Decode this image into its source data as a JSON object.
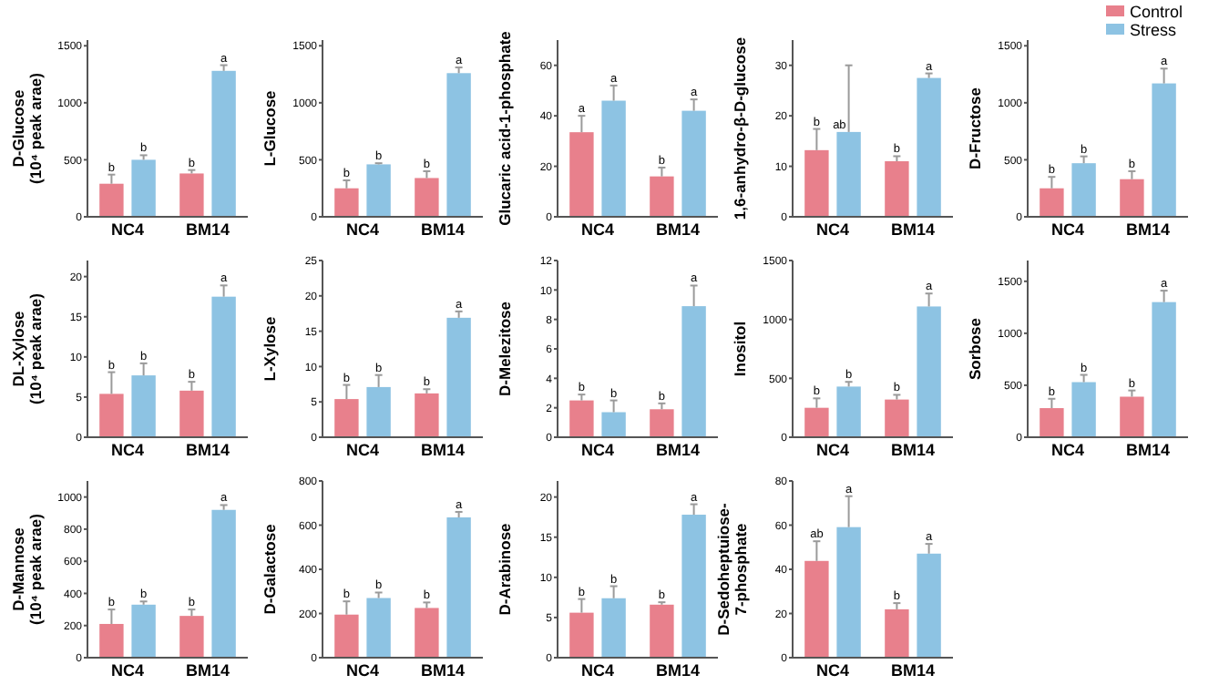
{
  "chart_data": [
    {
      "type": "bar",
      "ylabel": "D-Glucose\n(10⁴ peak arae)",
      "categories": [
        "NC4",
        "BM14"
      ],
      "ylim": [
        0,
        1550
      ],
      "yticks": [
        0,
        500,
        1000,
        1500
      ],
      "series": [
        {
          "color": "#e8808c",
          "values": [
            290,
            380
          ],
          "errors": [
            [
              290,
              370
            ],
            [
              380,
              410
            ]
          ],
          "value_labels": [
            "b",
            "b"
          ]
        },
        {
          "color": "#8dc3e3",
          "values": [
            500,
            1280
          ],
          "errors": [
            [
              500,
              540
            ],
            [
              1280,
              1330
            ]
          ],
          "value_labels": [
            "b",
            "a"
          ]
        }
      ]
    },
    {
      "type": "bar",
      "ylabel": "L-Glucose",
      "categories": [
        "NC4",
        "BM14"
      ],
      "ylim": [
        0,
        1550
      ],
      "yticks": [
        0,
        500,
        1000,
        1500
      ],
      "series": [
        {
          "color": "#e8808c",
          "values": [
            250,
            340
          ],
          "errors": [
            [
              250,
              320
            ],
            [
              340,
              400
            ]
          ],
          "value_labels": [
            "b",
            "b"
          ]
        },
        {
          "color": "#8dc3e3",
          "values": [
            460,
            1260
          ],
          "errors": [
            [
              460,
              470
            ],
            [
              1260,
              1310
            ]
          ],
          "value_labels": [
            "b",
            "a"
          ]
        }
      ]
    },
    {
      "type": "bar",
      "ylabel": "Glucaric acid-1-phosphate",
      "categories": [
        "NC4",
        "BM14"
      ],
      "ylim": [
        0,
        70
      ],
      "yticks": [
        0,
        20,
        40,
        60
      ],
      "series": [
        {
          "color": "#e8808c",
          "values": [
            33.5,
            16
          ],
          "errors": [
            [
              33.5,
              40
            ],
            [
              16,
              19.5
            ]
          ],
          "value_labels": [
            "a",
            "b"
          ]
        },
        {
          "color": "#8dc3e3",
          "values": [
            46,
            42
          ],
          "errors": [
            [
              46,
              52
            ],
            [
              42,
              46.5
            ]
          ],
          "value_labels": [
            "a",
            "a"
          ]
        }
      ]
    },
    {
      "type": "bar",
      "ylabel": "1,6-anhydro-β-D-glucose",
      "categories": [
        "NC4",
        "BM14"
      ],
      "ylim": [
        0,
        35
      ],
      "yticks": [
        0,
        10,
        20,
        30
      ],
      "series": [
        {
          "color": "#e8808c",
          "values": [
            13.2,
            11
          ],
          "errors": [
            [
              13.2,
              17.4
            ],
            [
              11,
              12
            ]
          ],
          "value_labels": [
            "b",
            "b"
          ]
        },
        {
          "color": "#8dc3e3",
          "values": [
            16.8,
            27.5
          ],
          "errors": [
            [
              16.8,
              30
            ],
            [
              27.5,
              28.4
            ]
          ],
          "value_labels": [
            "ab",
            "a"
          ]
        }
      ]
    },
    {
      "type": "bar",
      "ylabel": "D-Fructose",
      "categories": [
        "NC4",
        "BM14"
      ],
      "ylim": [
        0,
        1550
      ],
      "yticks": [
        0,
        500,
        1000,
        1500
      ],
      "legend": "top right",
      "series": [
        {
          "name": "Control",
          "color": "#e8808c",
          "values": [
            250,
            330
          ],
          "errors": [
            [
              250,
              350
            ],
            [
              330,
              400
            ]
          ],
          "value_labels": [
            "b",
            "b"
          ]
        },
        {
          "name": "Stress",
          "color": "#8dc3e3",
          "values": [
            470,
            1170
          ],
          "errors": [
            [
              470,
              530
            ],
            [
              1170,
              1300
            ]
          ],
          "value_labels": [
            "b",
            "a"
          ]
        }
      ]
    },
    {
      "type": "bar",
      "ylabel": "DL-Xylose\n(10⁴ peak arae)",
      "categories": [
        "NC4",
        "BM14"
      ],
      "ylim": [
        0,
        22
      ],
      "yticks": [
        0,
        5,
        10,
        15,
        20
      ],
      "series": [
        {
          "color": "#e8808c",
          "values": [
            5.4,
            5.8
          ],
          "errors": [
            [
              5.4,
              8.1
            ],
            [
              5.8,
              6.9
            ]
          ],
          "value_labels": [
            "b",
            "b"
          ]
        },
        {
          "color": "#8dc3e3",
          "values": [
            7.7,
            17.5
          ],
          "errors": [
            [
              7.7,
              9.2
            ],
            [
              17.5,
              18.9
            ]
          ],
          "value_labels": [
            "b",
            "a"
          ]
        }
      ]
    },
    {
      "type": "bar",
      "ylabel": "L-Xylose",
      "categories": [
        "NC4",
        "BM14"
      ],
      "ylim": [
        0,
        25
      ],
      "yticks": [
        0,
        5,
        10,
        15,
        20,
        25
      ],
      "series": [
        {
          "color": "#e8808c",
          "values": [
            5.4,
            6.2
          ],
          "errors": [
            [
              5.4,
              7.4
            ],
            [
              6.2,
              6.8
            ]
          ],
          "value_labels": [
            "b",
            "b"
          ]
        },
        {
          "color": "#8dc3e3",
          "values": [
            7.1,
            16.9
          ],
          "errors": [
            [
              7.1,
              8.8
            ],
            [
              16.9,
              17.8
            ]
          ],
          "value_labels": [
            "b",
            "a"
          ]
        }
      ]
    },
    {
      "type": "bar",
      "ylabel": "D-Melezitose",
      "categories": [
        "NC4",
        "BM14"
      ],
      "ylim": [
        0,
        12
      ],
      "yticks": [
        0,
        2,
        4,
        6,
        8,
        10,
        12
      ],
      "series": [
        {
          "color": "#e8808c",
          "values": [
            2.5,
            1.9
          ],
          "errors": [
            [
              2.5,
              2.9
            ],
            [
              1.9,
              2.3
            ]
          ],
          "value_labels": [
            "b",
            "b"
          ]
        },
        {
          "color": "#8dc3e3",
          "values": [
            1.7,
            8.9
          ],
          "errors": [
            [
              1.7,
              2.5
            ],
            [
              8.9,
              10.3
            ]
          ],
          "value_labels": [
            "b",
            "a"
          ]
        }
      ]
    },
    {
      "type": "bar",
      "ylabel": "Inositol",
      "categories": [
        "NC4",
        "BM14"
      ],
      "ylim": [
        0,
        1500
      ],
      "yticks": [
        0,
        500,
        1000,
        1500
      ],
      "series": [
        {
          "color": "#e8808c",
          "values": [
            250,
            320
          ],
          "errors": [
            [
              250,
              330
            ],
            [
              320,
              360
            ]
          ],
          "value_labels": [
            "b",
            "b"
          ]
        },
        {
          "color": "#8dc3e3",
          "values": [
            430,
            1110
          ],
          "errors": [
            [
              430,
              470
            ],
            [
              1110,
              1220
            ]
          ],
          "value_labels": [
            "b",
            "a"
          ]
        }
      ]
    },
    {
      "type": "bar",
      "ylabel": "Sorbose",
      "categories": [
        "NC4",
        "BM14"
      ],
      "ylim": [
        0,
        1700
      ],
      "yticks": [
        0,
        500,
        1000,
        1500
      ],
      "series": [
        {
          "color": "#e8808c",
          "values": [
            280,
            390
          ],
          "errors": [
            [
              280,
              370
            ],
            [
              390,
              450
            ]
          ],
          "value_labels": [
            "b",
            "b"
          ]
        },
        {
          "color": "#8dc3e3",
          "values": [
            530,
            1300
          ],
          "errors": [
            [
              530,
              600
            ],
            [
              1300,
              1410
            ]
          ],
          "value_labels": [
            "b",
            "a"
          ]
        }
      ]
    },
    {
      "type": "bar",
      "ylabel": "D-Mannose\n(10⁴ peak arae)",
      "categories": [
        "NC4",
        "BM14"
      ],
      "ylim": [
        0,
        1100
      ],
      "yticks": [
        0,
        200,
        400,
        600,
        800,
        1000
      ],
      "series": [
        {
          "color": "#e8808c",
          "values": [
            210,
            260
          ],
          "errors": [
            [
              210,
              300
            ],
            [
              260,
              300
            ]
          ],
          "value_labels": [
            "b",
            "b"
          ]
        },
        {
          "color": "#8dc3e3",
          "values": [
            330,
            920
          ],
          "errors": [
            [
              330,
              350
            ],
            [
              920,
              950
            ]
          ],
          "value_labels": [
            "b",
            "a"
          ]
        }
      ]
    },
    {
      "type": "bar",
      "ylabel": "D-Galactose",
      "categories": [
        "NC4",
        "BM14"
      ],
      "ylim": [
        0,
        800
      ],
      "yticks": [
        0,
        200,
        400,
        600,
        800
      ],
      "series": [
        {
          "color": "#e8808c",
          "values": [
            195,
            225
          ],
          "errors": [
            [
              195,
              255
            ],
            [
              225,
              250
            ]
          ],
          "value_labels": [
            "b",
            "b"
          ]
        },
        {
          "color": "#8dc3e3",
          "values": [
            270,
            635
          ],
          "errors": [
            [
              270,
              295
            ],
            [
              635,
              660
            ]
          ],
          "value_labels": [
            "b",
            "a"
          ]
        }
      ]
    },
    {
      "type": "bar",
      "ylabel": "D-Arabinose",
      "categories": [
        "NC4",
        "BM14"
      ],
      "ylim": [
        0,
        22
      ],
      "yticks": [
        0,
        5,
        10,
        15,
        20
      ],
      "series": [
        {
          "color": "#e8808c",
          "values": [
            5.6,
            6.6
          ],
          "errors": [
            [
              5.6,
              7.3
            ],
            [
              6.6,
              6.9
            ]
          ],
          "value_labels": [
            "b",
            "b"
          ]
        },
        {
          "color": "#8dc3e3",
          "values": [
            7.4,
            17.8
          ],
          "errors": [
            [
              7.4,
              8.9
            ],
            [
              17.8,
              19.1
            ]
          ],
          "value_labels": [
            "b",
            "a"
          ]
        }
      ]
    },
    {
      "type": "bar",
      "ylabel": "D-Sedoheptuiose-\n7-phosphate",
      "categories": [
        "NC4",
        "BM14"
      ],
      "ylim": [
        0,
        80
      ],
      "yticks": [
        0,
        20,
        40,
        60,
        80
      ],
      "series": [
        {
          "color": "#e8808c",
          "values": [
            43.8,
            21.9
          ],
          "errors": [
            [
              43.8,
              52.7
            ],
            [
              21.9,
              24.7
            ]
          ],
          "value_labels": [
            "ab",
            "b"
          ]
        },
        {
          "color": "#8dc3e3",
          "values": [
            59.1,
            47.1
          ],
          "errors": [
            [
              59.1,
              73.1
            ],
            [
              47.1,
              51.5
            ]
          ],
          "value_labels": [
            "a",
            "a"
          ]
        }
      ]
    }
  ]
}
